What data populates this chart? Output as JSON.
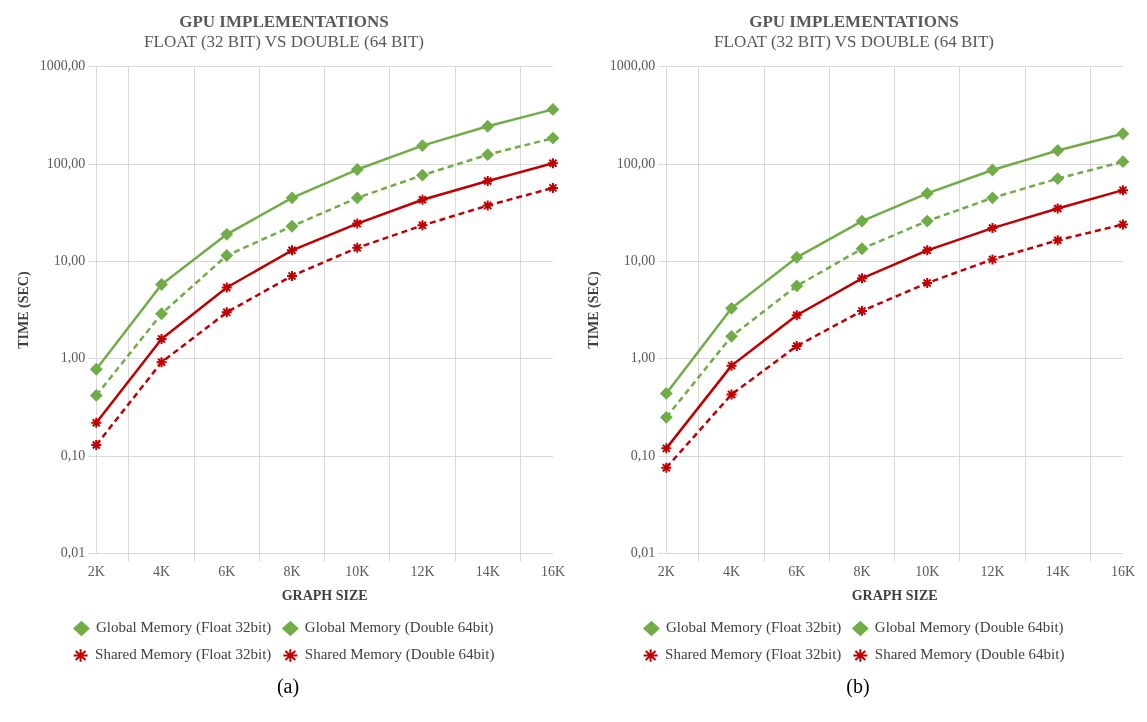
{
  "chart_data": [
    {
      "type": "line",
      "title": "GPU IMPLEMENTATIONS",
      "subtitle": "FLOAT (32 BIT) VS DOUBLE (64 BIT)",
      "xlabel": "GRAPH SIZE",
      "ylabel": "TIME (SEC)",
      "log": "y",
      "grid": true,
      "legend": "bottom",
      "categories": [
        "2K",
        "4K",
        "6K",
        "8K",
        "10K",
        "12K",
        "14K",
        "16K"
      ],
      "ylim": [
        0.01,
        1000
      ],
      "yticks": [
        {
          "value": 0.01,
          "label": "0,01"
        },
        {
          "value": 0.1,
          "label": "0,10"
        },
        {
          "value": 1,
          "label": "1,00"
        },
        {
          "value": 10,
          "label": "10,00"
        },
        {
          "value": 100,
          "label": "100,00"
        },
        {
          "value": 1000,
          "label": "1000,00"
        }
      ],
      "series": [
        {
          "name": "Global Memory (Float 32bit)",
          "color": "#70ad47",
          "marker": "diamond",
          "line_style": "dashed",
          "values": [
            0.42,
            2.9,
            11.5,
            23,
            45,
            77,
            125,
            185
          ]
        },
        {
          "name": "Global Memory (Double 64bit)",
          "color": "#70ad47",
          "marker": "diamond",
          "line_style": "solid",
          "values": [
            0.78,
            5.8,
            19,
            45,
            88,
            155,
            245,
            365
          ]
        },
        {
          "name": "Shared Memory (Float 32bit)",
          "color": "#c00000",
          "marker": "cross",
          "line_style": "dashed",
          "values": [
            0.13,
            0.92,
            3.0,
            7.1,
            13.8,
            23.5,
            37.5,
            57
          ]
        },
        {
          "name": "Shared Memory (Double 64bit)",
          "color": "#c00000",
          "marker": "cross",
          "line_style": "solid",
          "values": [
            0.22,
            1.6,
            5.4,
            13,
            24.5,
            43,
            67,
            102
          ]
        }
      ],
      "annotations": [
        "(a)"
      ]
    },
    {
      "type": "line",
      "title": "GPU IMPLEMENTATIONS",
      "subtitle": "FLOAT (32 BIT) VS DOUBLE (64 BIT)",
      "xlabel": "GRAPH SIZE",
      "ylabel": "TIME (SEC)",
      "log": "y",
      "grid": true,
      "legend": "bottom",
      "categories": [
        "2K",
        "4K",
        "6K",
        "8K",
        "10K",
        "12K",
        "14K",
        "16K"
      ],
      "ylim": [
        0.01,
        1000
      ],
      "yticks": [
        {
          "value": 0.01,
          "label": "0,01"
        },
        {
          "value": 0.1,
          "label": "0,10"
        },
        {
          "value": 1,
          "label": "1,00"
        },
        {
          "value": 10,
          "label": "10,00"
        },
        {
          "value": 100,
          "label": "100,00"
        },
        {
          "value": 1000,
          "label": "1000,00"
        }
      ],
      "series": [
        {
          "name": "Global Memory (Float 32bit)",
          "color": "#70ad47",
          "marker": "diamond",
          "line_style": "dashed",
          "values": [
            0.25,
            1.7,
            5.6,
            13.5,
            26,
            45,
            71,
            106
          ]
        },
        {
          "name": "Global Memory (Double 64bit)",
          "color": "#70ad47",
          "marker": "diamond",
          "line_style": "solid",
          "values": [
            0.44,
            3.3,
            11,
            26,
            50,
            87,
            138,
            205
          ]
        },
        {
          "name": "Shared Memory (Float 32bit)",
          "color": "#c00000",
          "marker": "cross",
          "line_style": "dashed",
          "values": [
            0.076,
            0.43,
            1.35,
            3.1,
            6,
            10.5,
            16.5,
            24
          ]
        },
        {
          "name": "Shared Memory (Double 64bit)",
          "color": "#c00000",
          "marker": "cross",
          "line_style": "solid",
          "values": [
            0.12,
            0.85,
            2.8,
            6.7,
            13,
            22,
            35,
            54
          ]
        }
      ],
      "annotations": [
        "(b)"
      ]
    }
  ]
}
